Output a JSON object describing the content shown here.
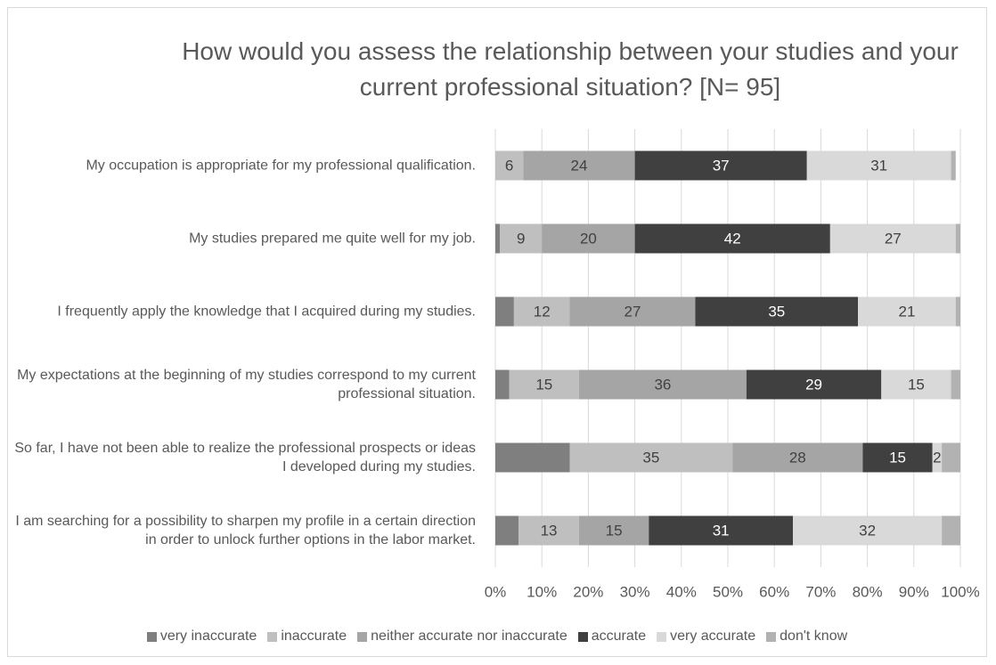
{
  "chart_data": {
    "type": "stacked_barh",
    "title": "How would you assess the relationship between your studies and your current professional situation? [N= 95]",
    "categories": [
      "My occupation is appropriate for my professional qualification.",
      "My studies prepared me quite well for my job.",
      "I frequently apply the knowledge that I acquired during my studies.",
      "My expectations at the beginning of my studies correspond to my current professional situation.",
      "So far, I have not been able to realize the professional prospects or ideas I developed during my studies.",
      "I am searching for a possibility to sharpen my profile in a certain direction in order to unlock further options in the labor market."
    ],
    "series": [
      {
        "name": "very inaccurate",
        "color": "#7f7f7f",
        "values": [
          0,
          1,
          4,
          3,
          16,
          5
        ],
        "value_labels": [
          null,
          null,
          null,
          null,
          null,
          null
        ]
      },
      {
        "name": "inaccurate",
        "color": "#bfbfbf",
        "values": [
          6,
          9,
          12,
          15,
          35,
          13
        ],
        "value_labels": [
          "6",
          "9",
          "12",
          "15",
          "35",
          "13"
        ]
      },
      {
        "name": "neither accurate nor inaccurate",
        "color": "#a5a5a5",
        "values": [
          24,
          20,
          27,
          36,
          28,
          15
        ],
        "value_labels": [
          "24",
          "20",
          "27",
          "36",
          "28",
          "15"
        ]
      },
      {
        "name": "accurate",
        "color": "#404040",
        "values": [
          37,
          42,
          35,
          29,
          15,
          31
        ],
        "value_labels": [
          "37",
          "42",
          "35",
          "29",
          "15",
          "31"
        ]
      },
      {
        "name": "very accurate",
        "color": "#d9d9d9",
        "values": [
          31,
          27,
          21,
          15,
          2,
          32
        ],
        "value_labels": [
          "31",
          "27",
          "21",
          "15",
          "2",
          "32"
        ]
      },
      {
        "name": "don't know",
        "color": "#b2b2b2",
        "values": [
          1,
          1,
          1,
          2,
          4,
          4
        ],
        "value_labels": [
          null,
          null,
          null,
          null,
          null,
          null
        ]
      }
    ],
    "xlim": [
      0,
      100
    ],
    "xticks": [
      {
        "value": 0,
        "label": "0%"
      },
      {
        "value": 10,
        "label": "10%"
      },
      {
        "value": 20,
        "label": "20%"
      },
      {
        "value": 30,
        "label": "30%"
      },
      {
        "value": 40,
        "label": "40%"
      },
      {
        "value": 50,
        "label": "50%"
      },
      {
        "value": 60,
        "label": "60%"
      },
      {
        "value": 70,
        "label": "70%"
      },
      {
        "value": 80,
        "label": "80%"
      },
      {
        "value": 90,
        "label": "90%"
      },
      {
        "value": 100,
        "label": "100%"
      }
    ],
    "grid": true,
    "legend": "bottom"
  }
}
